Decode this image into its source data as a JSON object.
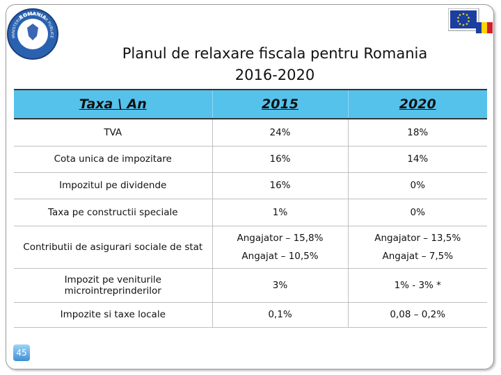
{
  "logo": {
    "top_text": "ROMANIA",
    "ring_text": "MINISTERUL FINANTELOR PUBLICE"
  },
  "title": {
    "line1": "Planul de relaxare fiscala pentru Romania",
    "line2": "2016-2020"
  },
  "table": {
    "header": [
      "Taxa \\ An",
      "2015",
      "2020"
    ],
    "rows": [
      [
        "TVA",
        "24%",
        "18%"
      ],
      [
        "Cota unica de impozitare",
        "16%",
        "14%"
      ],
      [
        "Impozitul pe dividende",
        "16%",
        "0%"
      ],
      [
        "Taxa pe constructii speciale",
        "1%",
        "0%"
      ],
      [
        "Contributii de asigurari sociale de stat",
        [
          "Angajator – 15,8%",
          "Angajat – 10,5%"
        ],
        [
          "Angajator – 13,5%",
          "Angajat – 7,5%"
        ]
      ],
      [
        "Impozit pe veniturile microintreprinderilor",
        "3%",
        "1% - 3% *"
      ],
      [
        "Impozite si taxe locale",
        "0,1%",
        "0,08 – 0,2%"
      ]
    ]
  },
  "page_number": "45"
}
